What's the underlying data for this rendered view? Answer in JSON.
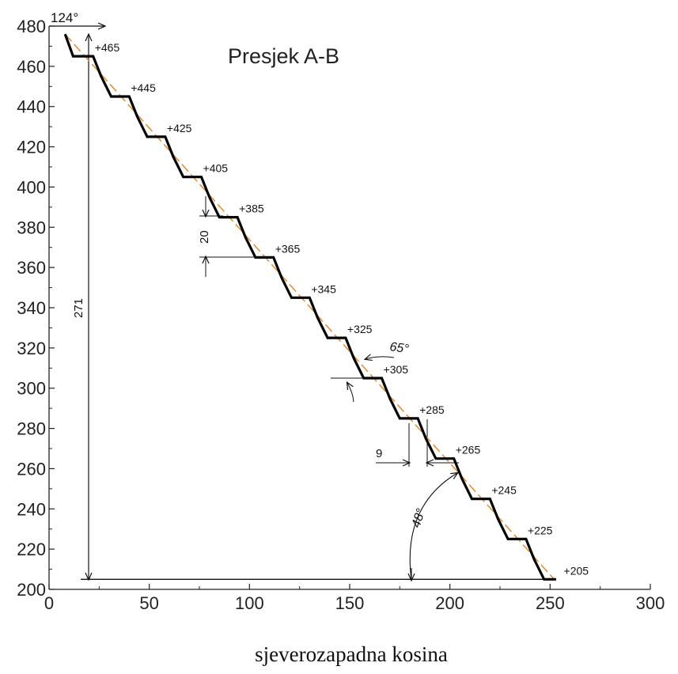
{
  "chart_data": {
    "type": "line",
    "title": "Presjek A-B",
    "caption": "sjeverozapadna kosina",
    "xlim": [
      0,
      300
    ],
    "ylim": [
      200,
      480
    ],
    "x_ticks": [
      0,
      50,
      100,
      150,
      200,
      250,
      300
    ],
    "y_ticks": [
      200,
      220,
      240,
      260,
      280,
      300,
      320,
      340,
      360,
      380,
      400,
      420,
      440,
      460,
      480
    ],
    "grid": false,
    "profile": {
      "x": [
        8,
        12,
        22,
        26,
        31,
        40,
        44,
        49,
        58,
        62,
        67,
        76,
        80,
        85,
        94,
        98,
        103,
        112,
        116,
        121,
        130,
        134,
        139,
        148,
        152,
        157,
        166,
        170,
        175,
        184,
        188,
        193,
        202,
        206,
        211,
        220,
        224,
        229,
        238,
        242,
        247,
        253
      ],
      "y": [
        476,
        465,
        465,
        455,
        445,
        445,
        435,
        425,
        425,
        415,
        405,
        405,
        395,
        385,
        385,
        375,
        365,
        365,
        355,
        345,
        345,
        335,
        325,
        325,
        315,
        305,
        305,
        295,
        285,
        285,
        275,
        265,
        265,
        255,
        245,
        245,
        235,
        225,
        225,
        215,
        205,
        205
      ]
    },
    "overall_slope": {
      "x": [
        8,
        252
      ],
      "y": [
        476,
        205
      ]
    },
    "bench_labels": [
      {
        "text": "+465",
        "x": 22,
        "y": 465
      },
      {
        "text": "+445",
        "x": 40,
        "y": 445
      },
      {
        "text": "+425",
        "x": 58,
        "y": 425
      },
      {
        "text": "+405",
        "x": 76,
        "y": 405
      },
      {
        "text": "+385",
        "x": 94,
        "y": 385
      },
      {
        "text": "+365",
        "x": 112,
        "y": 365
      },
      {
        "text": "+345",
        "x": 130,
        "y": 345
      },
      {
        "text": "+325",
        "x": 148,
        "y": 325
      },
      {
        "text": "+305",
        "x": 166,
        "y": 305
      },
      {
        "text": "+285",
        "x": 184,
        "y": 285
      },
      {
        "text": "+265",
        "x": 202,
        "y": 265
      },
      {
        "text": "+245",
        "x": 220,
        "y": 245
      },
      {
        "text": "+225",
        "x": 238,
        "y": 225
      },
      {
        "text": "+205",
        "x": 256,
        "y": 205
      }
    ],
    "annotations": {
      "angle_top": "124°",
      "total_height": "271",
      "bench_height": "20",
      "bench_width": "9",
      "face_angle": "65°",
      "overall_angle": "48°"
    },
    "colors": {
      "profile": "#000000",
      "slope": "#e8892c",
      "axis": "#222222"
    }
  }
}
